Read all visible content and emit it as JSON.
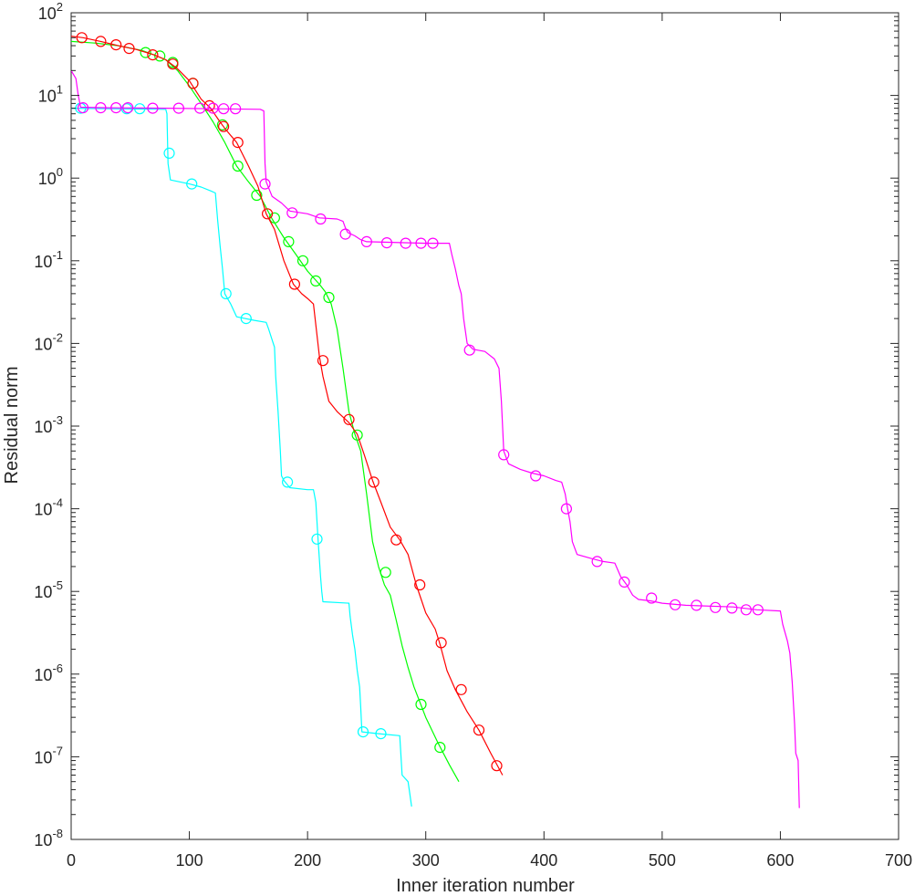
{
  "chart_data": {
    "type": "line",
    "xlabel": "Inner iteration number",
    "ylabel": "Residual norm",
    "yscale": "log",
    "xlim": [
      0,
      700
    ],
    "ylim": [
      1e-08,
      100
    ],
    "xticks": [
      0,
      100,
      200,
      300,
      400,
      500,
      600,
      700
    ],
    "xtick_labels": [
      "0",
      "100",
      "200",
      "300",
      "400",
      "500",
      "600",
      "700"
    ],
    "ytick_exponents": [
      -8,
      -7,
      -6,
      -5,
      -4,
      -3,
      -2,
      -1,
      0,
      1,
      2
    ],
    "ytick_labels": [
      {
        "base": "10",
        "exp": "-8"
      },
      {
        "base": "10",
        "exp": "-7"
      },
      {
        "base": "10",
        "exp": "-6"
      },
      {
        "base": "10",
        "exp": "-5"
      },
      {
        "base": "10",
        "exp": "-4"
      },
      {
        "base": "10",
        "exp": "-3"
      },
      {
        "base": "10",
        "exp": "-2"
      },
      {
        "base": "10",
        "exp": "-1"
      },
      {
        "base": "10",
        "exp": "0"
      },
      {
        "base": "10",
        "exp": "1"
      },
      {
        "base": "10",
        "exp": "2"
      }
    ],
    "grid": false,
    "legend": "none",
    "series": [
      {
        "color": "#00FFFF",
        "line": [
          [
            0,
            7
          ],
          [
            80,
            6.8
          ],
          [
            81,
            6
          ],
          [
            82,
            1.5
          ],
          [
            84,
            0.95
          ],
          [
            100,
            0.85
          ],
          [
            110,
            0.78
          ],
          [
            118,
            0.7
          ],
          [
            122,
            0.66
          ],
          [
            124,
            0.3
          ],
          [
            126,
            0.15
          ],
          [
            128,
            0.08
          ],
          [
            130,
            0.04
          ],
          [
            135,
            0.03
          ],
          [
            140,
            0.021
          ],
          [
            155,
            0.019
          ],
          [
            165,
            0.018
          ],
          [
            167,
            0.015
          ],
          [
            170,
            0.011
          ],
          [
            172,
            0.009
          ],
          [
            173,
            0.004
          ],
          [
            175,
            0.0015
          ],
          [
            177,
            0.0005
          ],
          [
            178,
            0.00025
          ],
          [
            180,
            0.00022
          ],
          [
            185,
            0.00018
          ],
          [
            200,
            0.00017
          ],
          [
            205,
            0.00017
          ],
          [
            207,
            0.00012
          ],
          [
            209,
            4e-05
          ],
          [
            211,
            1.5e-05
          ],
          [
            212,
            1e-05
          ],
          [
            213,
            7.5e-06
          ],
          [
            235,
            7.2e-06
          ],
          [
            236,
            5e-06
          ],
          [
            238,
            3e-06
          ],
          [
            240,
            2e-06
          ],
          [
            242,
            1.1e-06
          ],
          [
            244,
            7e-07
          ],
          [
            245,
            4e-07
          ],
          [
            246,
            2e-07
          ],
          [
            260,
            1.9e-07
          ],
          [
            278,
            1.8e-07
          ],
          [
            280,
            6e-08
          ],
          [
            285,
            5e-08
          ],
          [
            286,
            4e-08
          ],
          [
            288,
            2.5e-08
          ]
        ],
        "markers": [
          [
            8,
            7
          ],
          [
            47,
            6.9
          ],
          [
            58,
            6.9
          ],
          [
            83,
            2
          ],
          [
            102,
            0.85
          ],
          [
            131,
            0.04
          ],
          [
            148,
            0.02
          ],
          [
            183,
            0.00021
          ],
          [
            208,
            4.3e-05
          ],
          [
            247,
            2e-07
          ],
          [
            262,
            1.9e-07
          ]
        ]
      },
      {
        "color": "#00FF00",
        "line": [
          [
            0,
            45
          ],
          [
            20,
            43
          ],
          [
            40,
            40
          ],
          [
            60,
            35
          ],
          [
            70,
            31
          ],
          [
            80,
            27
          ],
          [
            90,
            20
          ],
          [
            100,
            13
          ],
          [
            110,
            8
          ],
          [
            120,
            4.8
          ],
          [
            130,
            2.7
          ],
          [
            140,
            1.4
          ],
          [
            150,
            0.9
          ],
          [
            160,
            0.6
          ],
          [
            170,
            0.32
          ],
          [
            180,
            0.19
          ],
          [
            190,
            0.12
          ],
          [
            200,
            0.075
          ],
          [
            210,
            0.052
          ],
          [
            215,
            0.042
          ],
          [
            220,
            0.03
          ],
          [
            225,
            0.015
          ],
          [
            230,
            0.005
          ],
          [
            235,
            0.0015
          ],
          [
            240,
            0.0008
          ],
          [
            245,
            0.0005
          ],
          [
            250,
            0.00015
          ],
          [
            255,
            4e-05
          ],
          [
            260,
            2e-05
          ],
          [
            265,
            1.2e-05
          ],
          [
            270,
            9e-06
          ],
          [
            275,
            4.5e-06
          ],
          [
            280,
            2.2e-06
          ],
          [
            285,
            1.2e-06
          ],
          [
            290,
            7e-07
          ],
          [
            300,
            3e-07
          ],
          [
            310,
            1.5e-07
          ],
          [
            320,
            8e-08
          ],
          [
            328,
            5e-08
          ]
        ],
        "markers": [
          [
            63,
            33
          ],
          [
            75,
            30
          ],
          [
            86,
            25
          ],
          [
            103,
            14
          ],
          [
            128,
            4.4
          ],
          [
            141,
            1.4
          ],
          [
            157,
            0.62
          ],
          [
            172,
            0.33
          ],
          [
            184,
            0.17
          ],
          [
            196,
            0.1
          ],
          [
            207,
            0.057
          ],
          [
            218,
            0.036
          ],
          [
            242,
            0.00078
          ],
          [
            266,
            1.7e-05
          ],
          [
            296,
            4.3e-07
          ],
          [
            312,
            1.3e-07
          ]
        ]
      },
      {
        "color": "#FF0000",
        "line": [
          [
            0,
            52
          ],
          [
            10,
            50
          ],
          [
            25,
            45
          ],
          [
            40,
            40
          ],
          [
            55,
            36
          ],
          [
            70,
            31
          ],
          [
            80,
            27
          ],
          [
            90,
            21
          ],
          [
            100,
            15
          ],
          [
            110,
            9
          ],
          [
            118,
            7
          ],
          [
            125,
            5
          ],
          [
            130,
            4
          ],
          [
            140,
            2.7
          ],
          [
            150,
            1.4
          ],
          [
            158,
            0.8
          ],
          [
            165,
            0.37
          ],
          [
            172,
            0.24
          ],
          [
            180,
            0.1
          ],
          [
            188,
            0.052
          ],
          [
            195,
            0.04
          ],
          [
            200,
            0.035
          ],
          [
            205,
            0.03
          ],
          [
            210,
            0.007
          ],
          [
            213,
            0.004
          ],
          [
            218,
            0.002
          ],
          [
            225,
            0.0015
          ],
          [
            235,
            0.0011
          ],
          [
            242,
            0.0008
          ],
          [
            248,
            0.00045
          ],
          [
            255,
            0.00022
          ],
          [
            262,
            0.00012
          ],
          [
            270,
            6e-05
          ],
          [
            278,
            4.2e-05
          ],
          [
            285,
            2.8e-05
          ],
          [
            292,
            1.2e-05
          ],
          [
            300,
            5.5e-06
          ],
          [
            308,
            3.5e-06
          ],
          [
            312,
            2.3e-06
          ],
          [
            318,
            1.1e-06
          ],
          [
            325,
            6.5e-07
          ],
          [
            335,
            3.5e-07
          ],
          [
            345,
            2.1e-07
          ],
          [
            355,
            1.1e-07
          ],
          [
            365,
            6e-08
          ]
        ],
        "markers": [
          [
            9,
            50
          ],
          [
            25,
            45
          ],
          [
            38,
            41
          ],
          [
            49,
            37
          ],
          [
            69,
            31
          ],
          [
            86,
            24
          ],
          [
            103,
            14
          ],
          [
            117,
            7.5
          ],
          [
            129,
            4.2
          ],
          [
            141,
            2.7
          ],
          [
            166,
            0.37
          ],
          [
            189,
            0.052
          ],
          [
            213,
            0.0062
          ],
          [
            235,
            0.0012
          ],
          [
            256,
            0.00021
          ],
          [
            275,
            4.2e-05
          ],
          [
            295,
            1.2e-05
          ],
          [
            313,
            2.4e-06
          ],
          [
            330,
            6.5e-07
          ],
          [
            345,
            2.1e-07
          ],
          [
            360,
            7.8e-08
          ]
        ]
      },
      {
        "color": "#FF00FF",
        "line": [
          [
            0,
            20
          ],
          [
            4,
            16
          ],
          [
            6,
            10
          ],
          [
            8,
            7.2
          ],
          [
            30,
            7.1
          ],
          [
            80,
            7
          ],
          [
            120,
            6.9
          ],
          [
            160,
            6.8
          ],
          [
            163,
            6.5
          ],
          [
            164,
            1.5
          ],
          [
            165,
            0.9
          ],
          [
            170,
            0.6
          ],
          [
            178,
            0.5
          ],
          [
            185,
            0.4
          ],
          [
            200,
            0.37
          ],
          [
            210,
            0.33
          ],
          [
            225,
            0.32
          ],
          [
            230,
            0.3
          ],
          [
            232,
            0.25
          ],
          [
            234,
            0.22
          ],
          [
            240,
            0.2
          ],
          [
            245,
            0.18
          ],
          [
            250,
            0.17
          ],
          [
            300,
            0.163
          ],
          [
            320,
            0.163
          ],
          [
            322,
            0.12
          ],
          [
            325,
            0.08
          ],
          [
            328,
            0.05
          ],
          [
            330,
            0.04
          ],
          [
            332,
            0.02
          ],
          [
            335,
            0.01
          ],
          [
            340,
            0.0085
          ],
          [
            350,
            0.008
          ],
          [
            358,
            0.0065
          ],
          [
            362,
            0.005
          ],
          [
            364,
            0.002
          ],
          [
            366,
            0.0005
          ],
          [
            370,
            0.00035
          ],
          [
            380,
            0.0003
          ],
          [
            390,
            0.00027
          ],
          [
            400,
            0.00025
          ],
          [
            410,
            0.00022
          ],
          [
            415,
            0.00021
          ],
          [
            418,
            0.00015
          ],
          [
            420,
            0.0001
          ],
          [
            422,
            7e-05
          ],
          [
            424,
            4e-05
          ],
          [
            428,
            2.8e-05
          ],
          [
            440,
            2.5e-05
          ],
          [
            450,
            2.3e-05
          ],
          [
            460,
            2.2e-05
          ],
          [
            465,
            1.5e-05
          ],
          [
            470,
            1.2e-05
          ],
          [
            475,
            9e-06
          ],
          [
            480,
            8e-06
          ],
          [
            490,
            7.7e-06
          ],
          [
            500,
            7.2e-06
          ],
          [
            520,
            6.8e-06
          ],
          [
            560,
            6.5e-06
          ],
          [
            580,
            6e-06
          ],
          [
            600,
            5.8e-06
          ],
          [
            602,
            4e-06
          ],
          [
            606,
            2.5e-06
          ],
          [
            608,
            1.8e-06
          ],
          [
            610,
            8e-07
          ],
          [
            612,
            2.5e-07
          ],
          [
            613,
            1.1e-07
          ],
          [
            615,
            9e-08
          ],
          [
            616,
            2.4e-08
          ]
        ],
        "markers": [
          [
            10,
            7.1
          ],
          [
            25,
            7.1
          ],
          [
            38,
            7.1
          ],
          [
            48,
            7.1
          ],
          [
            69,
            7
          ],
          [
            91,
            7
          ],
          [
            109,
            7
          ],
          [
            120,
            7
          ],
          [
            129,
            6.9
          ],
          [
            139,
            6.9
          ],
          [
            164,
            0.85
          ],
          [
            187,
            0.38
          ],
          [
            211,
            0.32
          ],
          [
            232,
            0.21
          ],
          [
            250,
            0.17
          ],
          [
            267,
            0.165
          ],
          [
            283,
            0.163
          ],
          [
            296,
            0.163
          ],
          [
            306,
            0.163
          ],
          [
            337,
            0.0083
          ],
          [
            366,
            0.00045
          ],
          [
            393,
            0.00025
          ],
          [
            419,
            0.0001
          ],
          [
            445,
            2.3e-05
          ],
          [
            468,
            1.3e-05
          ],
          [
            491,
            8.3e-06
          ],
          [
            511,
            6.9e-06
          ],
          [
            529,
            6.8e-06
          ],
          [
            545,
            6.4e-06
          ],
          [
            559,
            6.3e-06
          ],
          [
            571,
            6e-06
          ],
          [
            581,
            6e-06
          ]
        ]
      }
    ]
  }
}
